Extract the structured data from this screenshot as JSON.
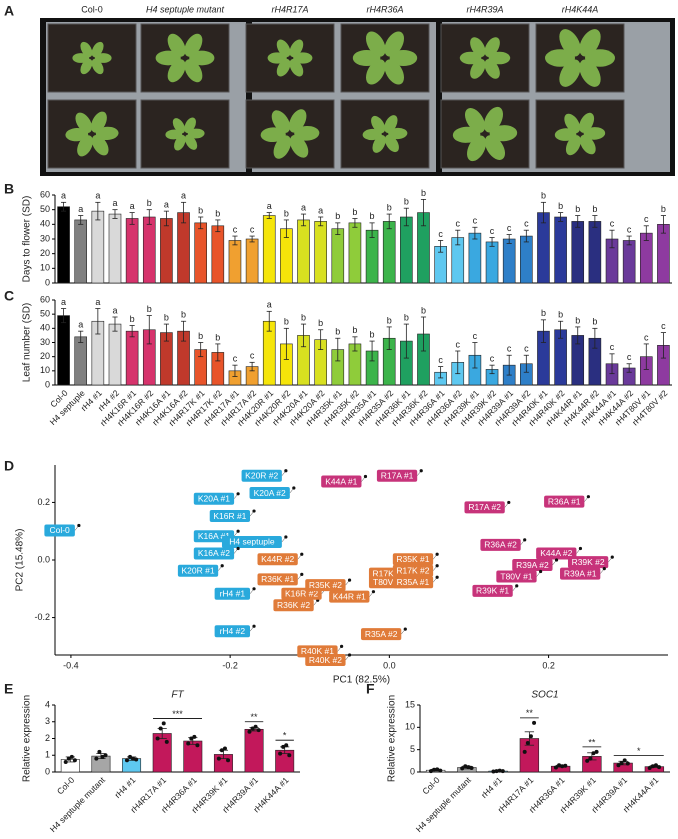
{
  "photo": {
    "panel": "A",
    "labels": [
      "Col-0",
      "H4 septuple mutant",
      "rH4R17A",
      "rH4R36A",
      "rH4R39A",
      "rH4K44A"
    ]
  },
  "chart_data": [
    {
      "type": "bar",
      "panel": "B",
      "ylabel": "Days to flower (SD)",
      "values": [
        52,
        43,
        49,
        47,
        44,
        45,
        44,
        48,
        41,
        39,
        29,
        30,
        46,
        37,
        43,
        42,
        37,
        41,
        36,
        42,
        45,
        48,
        25,
        31,
        34,
        28,
        30,
        32,
        48,
        45,
        42,
        42,
        30,
        29,
        34,
        40
      ],
      "errors": [
        3,
        3,
        6,
        3,
        4,
        5,
        5,
        7,
        4,
        4,
        3,
        2,
        2,
        6,
        4,
        3,
        4,
        3,
        5,
        5,
        6,
        9,
        4,
        5,
        4,
        3,
        3,
        4,
        7,
        3,
        4,
        4,
        6,
        3,
        5,
        6
      ],
      "letters": [
        "a",
        "a",
        "a",
        "a",
        "a",
        "b",
        "a",
        "a",
        "b",
        "b",
        "c",
        "c",
        "a",
        "b",
        "a",
        "a",
        "b",
        "b",
        "b",
        "b",
        "b",
        "b",
        "c",
        "c",
        "c",
        "c",
        "c",
        "c",
        "b",
        "b",
        "b",
        "b",
        "c",
        "c",
        "c",
        "b"
      ],
      "colors": [
        "#000000",
        "#808080",
        "#d9d9d9",
        "#d9d9d9",
        "#d6336c",
        "#d6336c",
        "#c0392b",
        "#c0392b",
        "#e8542a",
        "#e8542a",
        "#f0a030",
        "#f0a030",
        "#f5e50a",
        "#f5e50a",
        "#d8e020",
        "#d8e020",
        "#8fcc3a",
        "#8fcc3a",
        "#3cb44b",
        "#3cb44b",
        "#1fa060",
        "#1fa060",
        "#5ec8f0",
        "#5ec8f0",
        "#3aa8e0",
        "#3aa8e0",
        "#2e7fc8",
        "#2e7fc8",
        "#2b3a9a",
        "#2b3a9a",
        "#2a2f80",
        "#2a2f80",
        "#6a3a9a",
        "#6a3a9a",
        "#8e3aa0",
        "#8e3aa0"
      ],
      "ylim": [
        0,
        60
      ],
      "yticks": [
        0,
        10,
        20,
        30,
        40,
        50,
        60
      ]
    },
    {
      "type": "bar",
      "panel": "C",
      "ylabel": "Leaf number (SD)",
      "categories": [
        "Col-0",
        "H4 septuple",
        "rH4 #1",
        "rH4 #2",
        "rH4K16R #1",
        "rH4K16R #2",
        "rH4K16A #1",
        "rH4K16A #2",
        "rH4R17K #1",
        "rH4R17K #2",
        "rH4R17A #1",
        "rH4R17A #2",
        "rH4K20R #1",
        "rH4K20R #2",
        "rH4K20A #1",
        "rH4K20A #2",
        "rH4R35K #1",
        "rH4R35K #2",
        "rH4R35A #1",
        "rH4R35A #2",
        "rH4R36K #1",
        "rH4R36K #2",
        "rH4R36A #1",
        "rH4R36A #2",
        "rH4R39K #1",
        "rH4R39K #2",
        "rH4R39A #1",
        "rH4R39A #2",
        "rH4R40K #1",
        "rH4R40K #2",
        "rH4K44R #1",
        "rH4K44R #2",
        "rH4K44A #1",
        "rH4K44A #2",
        "rH4T80V #1",
        "rH4T80V #2"
      ],
      "values": [
        49,
        34,
        45,
        43,
        38,
        39,
        37,
        38,
        25,
        23,
        10,
        13,
        45,
        29,
        35,
        32,
        25,
        29,
        24,
        33,
        31,
        36,
        9,
        16,
        21,
        11,
        14,
        15,
        38,
        39,
        35,
        33,
        15,
        12,
        20,
        28
      ],
      "errors": [
        5,
        4,
        9,
        5,
        4,
        10,
        6,
        7,
        5,
        6,
        4,
        3,
        7,
        11,
        8,
        7,
        8,
        5,
        7,
        8,
        12,
        12,
        4,
        8,
        9,
        3,
        7,
        6,
        8,
        6,
        6,
        7,
        7,
        3,
        9,
        9
      ],
      "letters": [
        "a",
        "a",
        "a",
        "a",
        "b",
        "b",
        "b",
        "b",
        "b",
        "b",
        "c",
        "c",
        "a",
        "b",
        "b",
        "b",
        "b",
        "b",
        "b",
        "b",
        "b",
        "b",
        "c",
        "c",
        "c",
        "c",
        "c",
        "c",
        "b",
        "b",
        "b",
        "b",
        "c",
        "c",
        "c",
        "c"
      ],
      "colors": [
        "#000000",
        "#808080",
        "#d9d9d9",
        "#d9d9d9",
        "#d6336c",
        "#d6336c",
        "#c0392b",
        "#c0392b",
        "#e8542a",
        "#e8542a",
        "#f0a030",
        "#f0a030",
        "#f5e50a",
        "#f5e50a",
        "#d8e020",
        "#d8e020",
        "#8fcc3a",
        "#8fcc3a",
        "#3cb44b",
        "#3cb44b",
        "#1fa060",
        "#1fa060",
        "#5ec8f0",
        "#5ec8f0",
        "#3aa8e0",
        "#3aa8e0",
        "#2e7fc8",
        "#2e7fc8",
        "#2b3a9a",
        "#2b3a9a",
        "#2a2f80",
        "#2a2f80",
        "#6a3a9a",
        "#6a3a9a",
        "#8e3aa0",
        "#8e3aa0"
      ],
      "ylim": [
        0,
        60
      ],
      "yticks": [
        0,
        10,
        20,
        30,
        40,
        50,
        60
      ]
    },
    {
      "type": "scatter",
      "panel": "D",
      "xlabel": "PC1 (82.5%)",
      "ylabel": "PC2 (15.48%)",
      "xlim": [
        -0.42,
        0.35
      ],
      "ylim": [
        -0.33,
        0.33
      ],
      "xticks": [
        -0.4,
        -0.2,
        {
          "value": 0,
          "label": "0.0"
        },
        0.2
      ],
      "yticks": [
        -0.2,
        {
          "value": 0,
          "label": "0.0"
        },
        0.2
      ],
      "series": [
        {
          "color": "#29a9dc",
          "labels": [
            "Col-0",
            "K20R #2",
            "K20A #1",
            "K20A #2",
            "K16R #1",
            "K16A #1",
            "H4 septuple",
            "K16A #2",
            "K20R #1",
            "rH4 #1",
            "rH4 #2"
          ],
          "x": [
            -0.39,
            -0.13,
            -0.19,
            -0.12,
            -0.17,
            -0.19,
            -0.13,
            -0.19,
            -0.21,
            -0.17,
            -0.17
          ],
          "y": [
            0.12,
            0.31,
            0.23,
            0.25,
            0.17,
            0.1,
            0.08,
            0.04,
            -0.02,
            -0.1,
            -0.23
          ]
        },
        {
          "color": "#e07b39",
          "labels": [
            "K44R #2",
            "R36K #1",
            "R36K #2",
            "K16R #2",
            "R17K #1",
            "T80V #2",
            "R35K #2",
            "K44R #1",
            "R35K #1",
            "R17K #2",
            "R35A #1",
            "R35A #2",
            "R40K #1",
            "R40K #2"
          ],
          "x": [
            -0.11,
            -0.11,
            -0.09,
            -0.08,
            0.03,
            0.03,
            -0.05,
            -0.02,
            0.06,
            0.06,
            0.06,
            0.02,
            -0.06,
            -0.05
          ],
          "y": [
            0.02,
            -0.05,
            -0.14,
            -0.1,
            -0.03,
            -0.06,
            -0.07,
            -0.11,
            0.02,
            -0.02,
            -0.06,
            -0.24,
            -0.3,
            -0.33
          ]
        },
        {
          "color": "#c7337a",
          "labels": [
            "R17A #1",
            "K44A #1",
            "R17A #2",
            "R36A #1",
            "R36A #2",
            "K44A #2",
            "R39A #2",
            "R39K #2",
            "R39A #1",
            "T80V #1",
            "R39K #1"
          ],
          "x": [
            0.04,
            -0.03,
            0.15,
            0.25,
            0.17,
            0.24,
            0.21,
            0.28,
            0.27,
            0.19,
            0.16
          ],
          "y": [
            0.31,
            0.29,
            0.2,
            0.22,
            0.07,
            0.04,
            0.0,
            0.01,
            -0.03,
            -0.04,
            -0.09
          ]
        }
      ]
    },
    {
      "type": "bar",
      "panel": "E",
      "title": "FT",
      "ylabel": "Relative expression",
      "categories": [
        "Col-0",
        "H4 septuple mutant",
        "rH4 #1",
        "rH4R17A #1",
        "rH4R36A #1",
        "rH4R39K #1",
        "rH4R39A #1",
        "rH4K44A #1"
      ],
      "values": [
        0.75,
        0.95,
        0.8,
        2.3,
        1.85,
        1.05,
        2.55,
        1.3
      ],
      "errors": [
        0.15,
        0.15,
        0.1,
        0.3,
        0.2,
        0.25,
        0.1,
        0.2
      ],
      "points": [
        [
          0.6,
          0.8,
          0.9,
          0.7
        ],
        [
          0.8,
          1.2,
          0.9,
          1.0
        ],
        [
          0.7,
          0.9,
          0.8,
          0.75
        ],
        [
          2.0,
          2.6,
          2.9,
          1.8
        ],
        [
          1.7,
          2.0,
          2.1,
          1.6
        ],
        [
          0.8,
          1.3,
          1.4,
          0.7
        ],
        [
          2.4,
          2.6,
          2.7,
          2.5
        ],
        [
          1.1,
          1.5,
          1.6,
          1.0
        ]
      ],
      "colors": [
        "#ffffff",
        "#a6a6a6",
        "#5ec8f0",
        "#c2185b",
        "#c2185b",
        "#c2185b",
        "#c2185b",
        "#c2185b"
      ],
      "annotations": [
        {
          "text": "***",
          "from": 3,
          "to": 4
        },
        {
          "text": "**",
          "from": 6,
          "to": 6
        },
        {
          "text": "*",
          "from": 7,
          "to": 7
        }
      ],
      "ylim": [
        0,
        4
      ],
      "yticks": [
        0,
        1,
        2,
        3,
        4
      ]
    },
    {
      "type": "bar",
      "panel": "F",
      "title": "SOC1",
      "ylabel": "Relative expression",
      "categories": [
        "Col-0",
        "H4 septuple mutant",
        "rH4 #1",
        "rH4R17A #1",
        "rH4R36A #1",
        "rH4R39K #1",
        "rH4R39A #1",
        "rH4K44A #1"
      ],
      "values": [
        0.4,
        1.0,
        0.2,
        7.5,
        1.3,
        3.5,
        2.0,
        1.2
      ],
      "errors": [
        0.2,
        0.3,
        0.05,
        1.5,
        0.2,
        0.8,
        0.4,
        0.2
      ],
      "points": [
        [
          0.2,
          0.5,
          0.6,
          0.3
        ],
        [
          0.8,
          1.3,
          1.1,
          0.9
        ],
        [
          0.1,
          0.2,
          0.3,
          0.2
        ],
        [
          4.5,
          6.5,
          8,
          11
        ],
        [
          1.0,
          1.5,
          1.3,
          1.4
        ],
        [
          2.5,
          3.0,
          4.2,
          4.5
        ],
        [
          1.5,
          2.0,
          2.6,
          1.9
        ],
        [
          0.9,
          1.3,
          1.5,
          1.1
        ]
      ],
      "colors": [
        "#ffffff",
        "#a6a6a6",
        "#5ec8f0",
        "#c2185b",
        "#c2185b",
        "#c2185b",
        "#c2185b",
        "#c2185b"
      ],
      "annotations": [
        {
          "text": "**",
          "from": 3,
          "to": 3
        },
        {
          "text": "**",
          "from": 5,
          "to": 5
        },
        {
          "text": "*",
          "from": 6,
          "to": 7
        }
      ],
      "ylim": [
        0,
        15
      ],
      "yticks": [
        0,
        5,
        10,
        15
      ]
    }
  ]
}
